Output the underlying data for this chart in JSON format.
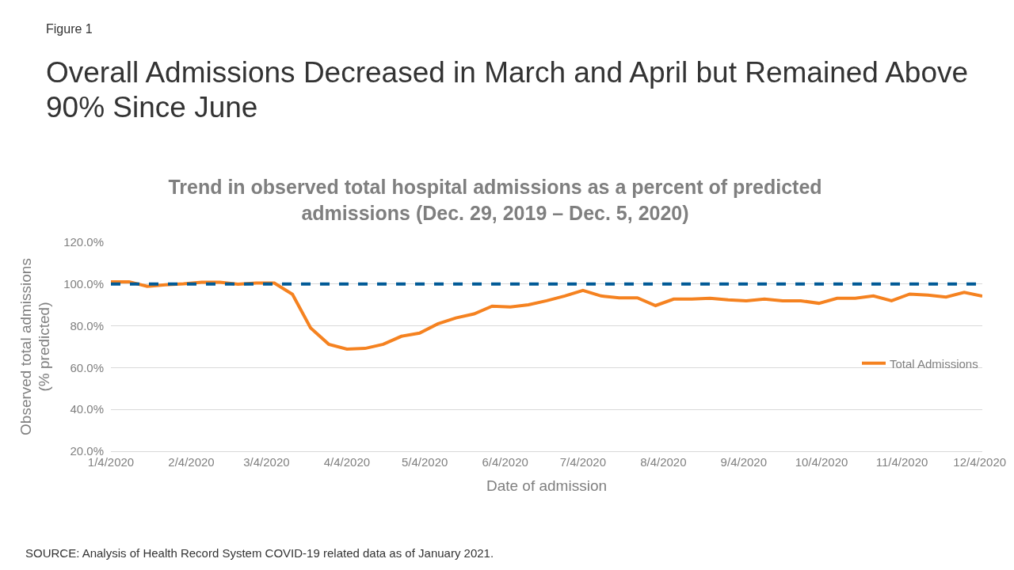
{
  "chart_data": {
    "type": "line",
    "title": "Overall Admissions Decreased in March and April but Remained Above 90% Since June",
    "subtitle": "Trend in observed total hospital admissions as a percent of predicted admissions (Dec. 29, 2019 – Dec. 5, 2020)",
    "xlabel": "Date of admission",
    "ylabel": "Observed total admissions (% predicted)",
    "annotations": [
      "Figure 1",
      "SOURCE: Analysis of Health Record System COVID-19 related data as of January 2021."
    ],
    "x": [
      "2020-01-04",
      "2020-01-11",
      "2020-01-18",
      "2020-01-25",
      "2020-02-01",
      "2020-02-08",
      "2020-02-15",
      "2020-02-22",
      "2020-02-29",
      "2020-03-07",
      "2020-03-14",
      "2020-03-21",
      "2020-03-28",
      "2020-04-04",
      "2020-04-11",
      "2020-04-18",
      "2020-04-25",
      "2020-05-02",
      "2020-05-09",
      "2020-05-16",
      "2020-05-23",
      "2020-05-30",
      "2020-06-06",
      "2020-06-13",
      "2020-06-20",
      "2020-06-27",
      "2020-07-04",
      "2020-07-11",
      "2020-07-18",
      "2020-07-25",
      "2020-08-01",
      "2020-08-08",
      "2020-08-15",
      "2020-08-22",
      "2020-08-29",
      "2020-09-05",
      "2020-09-12",
      "2020-09-19",
      "2020-09-26",
      "2020-10-03",
      "2020-10-10",
      "2020-10-17",
      "2020-10-24",
      "2020-10-31",
      "2020-11-07",
      "2020-11-14",
      "2020-11-21",
      "2020-11-28",
      "2020-12-05"
    ],
    "series": [
      {
        "name": "Total Admissions",
        "color": "#f58220",
        "values": [
          101.1,
          101.1,
          98.9,
          99.6,
          100.1,
          100.9,
          100.9,
          99.9,
          100.5,
          100.5,
          95.1,
          79.0,
          71.2,
          68.9,
          69.2,
          71.2,
          75.0,
          76.5,
          80.9,
          83.8,
          85.7,
          89.4,
          89.0,
          90.1,
          92.0,
          94.3,
          97.0,
          94.3,
          93.4,
          93.4,
          89.7,
          92.8,
          92.8,
          93.2,
          92.4,
          92.0,
          92.8,
          92.0,
          92.0,
          90.8,
          93.2,
          93.2,
          94.3,
          92.0,
          95.2,
          94.7,
          93.8,
          96.0,
          94.2
        ]
      }
    ],
    "xlim": [
      "2020-01-04",
      "2020-12-05"
    ],
    "xticks": [
      {
        "value": "2020-01-04",
        "label": "1/4/2020"
      },
      {
        "value": "2020-02-04",
        "label": "2/4/2020"
      },
      {
        "value": "2020-03-04",
        "label": "3/4/2020"
      },
      {
        "value": "2020-04-04",
        "label": "4/4/2020"
      },
      {
        "value": "2020-05-04",
        "label": "5/4/2020"
      },
      {
        "value": "2020-06-04",
        "label": "6/4/2020"
      },
      {
        "value": "2020-07-04",
        "label": "7/4/2020"
      },
      {
        "value": "2020-08-04",
        "label": "8/4/2020"
      },
      {
        "value": "2020-09-04",
        "label": "9/4/2020"
      },
      {
        "value": "2020-10-04",
        "label": "10/4/2020"
      },
      {
        "value": "2020-11-04",
        "label": "11/4/2020"
      },
      {
        "value": "2020-12-04",
        "label": "12/4/2020"
      }
    ],
    "ylim": [
      20,
      120
    ],
    "yticks": [
      {
        "value": 20,
        "label": "20.0%"
      },
      {
        "value": 40,
        "label": "40.0%"
      },
      {
        "value": 60,
        "label": "60.0%"
      },
      {
        "value": 80,
        "label": "80.0%"
      },
      {
        "value": 100,
        "label": "100.0%"
      },
      {
        "value": 120,
        "label": "120.0%"
      }
    ],
    "ref_lines": [
      {
        "axis": "y",
        "value": 100,
        "color": "#005a96",
        "line_style": "dashed"
      }
    ],
    "grid": "y",
    "legend": "right",
    "marker": "none",
    "line_style": "solid"
  }
}
